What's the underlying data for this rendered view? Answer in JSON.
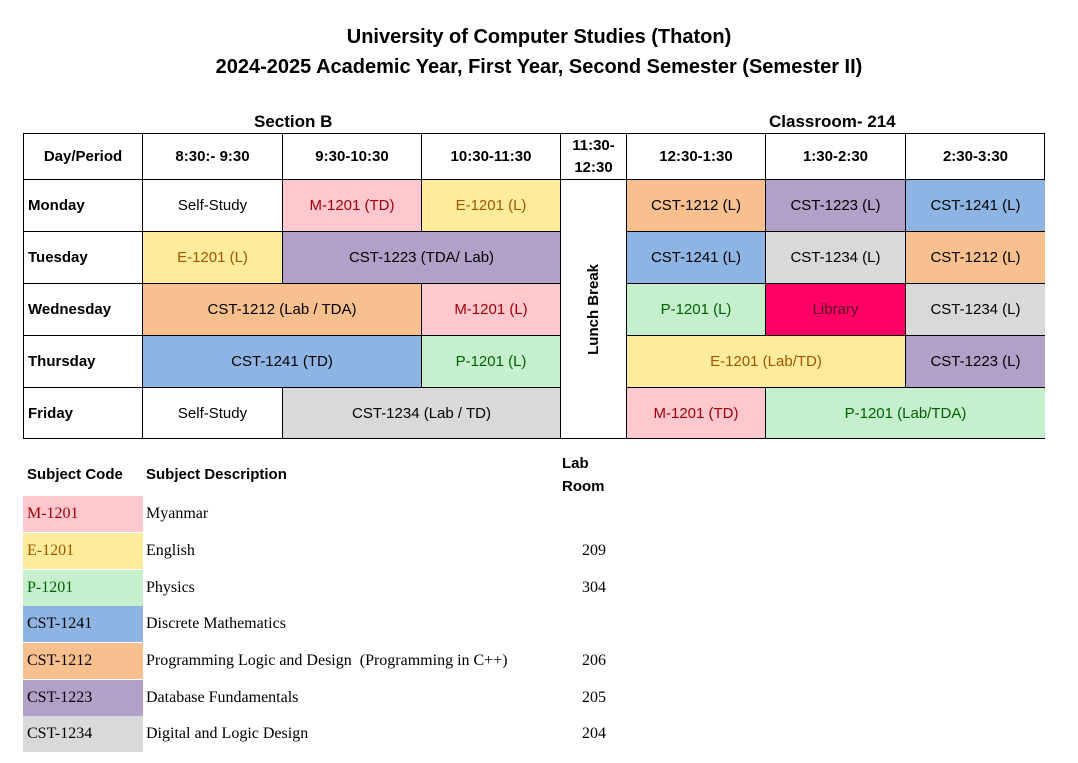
{
  "header": {
    "title_line1": "University of Computer Studies (Thaton)",
    "title_line2": "2024-2025 Academic Year, First Year, Second Semester (Semester II)",
    "section": "Section B",
    "classroom": "Classroom- 214"
  },
  "timetable": {
    "corner": "Day/Period",
    "periods": [
      "8:30:- 9:30",
      "9:30-10:30",
      "10:30-11:30",
      "11:30-12:30",
      "12:30-1:30",
      "1:30-2:30",
      "2:30-3:30"
    ],
    "lunch": "Lunch Break",
    "days": [
      "Monday",
      "Tuesday",
      "Wednesday",
      "Thursday",
      "Friday"
    ],
    "cells": {
      "mon_1": "Self-Study",
      "mon_2": "M-1201 (TD)",
      "mon_3": "E-1201 (L)",
      "mon_5": "CST-1212 (L)",
      "mon_6": "CST-1223 (L)",
      "mon_7": "CST-1241 (L)",
      "tue_1": "E-1201 (L)",
      "tue_23": "CST-1223 (TDA/ Lab)",
      "tue_5": "CST-1241 (L)",
      "tue_6": "CST-1234 (L)",
      "tue_7": "CST-1212 (L)",
      "wed_12": "CST-1212 (Lab / TDA)",
      "wed_3": "M-1201 (L)",
      "wed_5": "P-1201 (L)",
      "wed_6": "Library",
      "wed_7": "CST-1234 (L)",
      "thu_12": "CST-1241 (TD)",
      "thu_3": "P-1201 (L)",
      "thu_56": "E-1201 (Lab/TD)",
      "thu_7": "CST-1223 (L)",
      "fri_1": "Self-Study",
      "fri_23": "CST-1234 (Lab / TD)",
      "fri_5": "M-1201 (TD)",
      "fri_67": "P-1201 (Lab/TDA)"
    }
  },
  "legend": {
    "col_code": "Subject Code",
    "col_desc": "Subject Description",
    "col_room": "Lab Room",
    "rows": [
      {
        "code": "M-1201",
        "desc": "Myanmar",
        "room": ""
      },
      {
        "code": "E-1201",
        "desc": "English",
        "room": "209"
      },
      {
        "code": "P-1201",
        "desc": "Physics",
        "room": "304"
      },
      {
        "code": "CST-1241",
        "desc": "Discrete Mathematics",
        "room": ""
      },
      {
        "code": "CST-1212",
        "desc": "Programming Logic and Design  (Programming in C++)",
        "room": "206"
      },
      {
        "code": "CST-1223",
        "desc": "Database Fundamentals",
        "room": "205"
      },
      {
        "code": "CST-1234",
        "desc": "Digital and Logic Design",
        "room": "204"
      }
    ]
  },
  "colors": {
    "M-1201": {
      "bg": "#ffc7ce",
      "fg": "#9c0006"
    },
    "E-1201": {
      "bg": "#ffeb9c",
      "fg": "#9c5700"
    },
    "P-1201": {
      "bg": "#c6efce",
      "fg": "#006100"
    },
    "CST-1241": {
      "bg": "#8eb4e3",
      "fg": "#000000"
    },
    "CST-1212": {
      "bg": "#f8bf8f",
      "fg": "#000000"
    },
    "CST-1223": {
      "bg": "#b1a0c7",
      "fg": "#000000"
    },
    "CST-1234": {
      "bg": "#d9d9d9",
      "fg": "#000000"
    },
    "Library": {
      "bg": "#ff0066",
      "fg": "#5c0020"
    }
  }
}
